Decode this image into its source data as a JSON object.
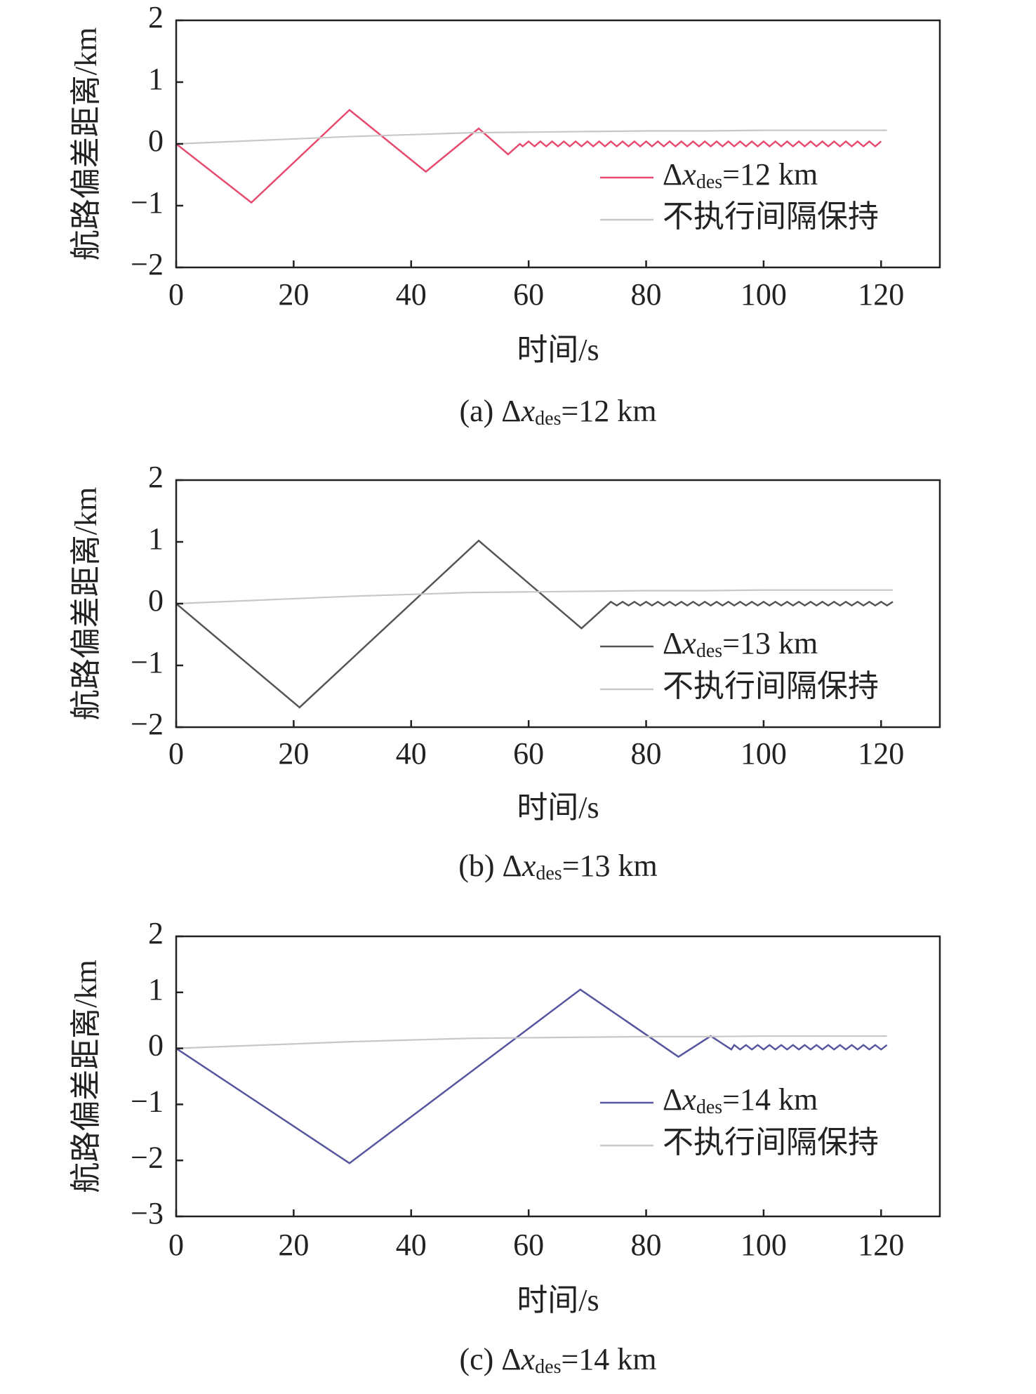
{
  "chart_data": [
    {
      "type": "line",
      "x_label": "时间/s",
      "y_label": "航路偏差距离/km",
      "caption": [
        {
          "text": "(a) Δ"
        },
        {
          "text": "x",
          "style": "italic"
        },
        {
          "text": "des",
          "style": "sub"
        },
        {
          "text": "=12 km"
        }
      ],
      "xlim": [
        0,
        130
      ],
      "xticks": [
        0,
        20,
        40,
        60,
        80,
        100,
        120
      ],
      "ylim": [
        -2,
        2
      ],
      "yticks": [
        {
          "value": -2,
          "label": "−2"
        },
        {
          "value": -1,
          "label": "−1"
        },
        0,
        1,
        2
      ],
      "grid": false,
      "legend": "lower right",
      "series": [
        {
          "name": [
            {
              "text": "Δ"
            },
            {
              "text": "x",
              "style": "italic"
            },
            {
              "text": "des",
              "style": "sub"
            },
            {
              "text": "=12 km"
            }
          ],
          "color": "#e64a6e",
          "x": [
            0,
            12.8,
            29.5,
            42.5,
            51.5,
            56.5,
            58.5,
            59,
            60,
            61,
            62,
            63,
            64,
            65,
            66,
            67,
            68,
            69,
            70,
            71,
            72,
            73,
            74,
            75,
            76,
            77,
            78,
            79,
            80,
            81,
            82,
            83,
            84,
            85,
            86,
            87,
            88,
            89,
            90,
            91,
            92,
            93,
            94,
            95,
            96,
            97,
            98,
            99,
            100,
            101,
            102,
            103,
            104,
            105,
            106,
            107,
            108,
            109,
            110,
            111,
            112,
            113,
            114,
            115,
            116,
            117,
            118,
            119,
            120
          ],
          "values": [
            0,
            -0.95,
            0.55,
            -0.45,
            0.25,
            -0.17,
            0,
            -0.04,
            0.04,
            -0.04,
            0.04,
            -0.04,
            0.04,
            -0.04,
            0.04,
            -0.04,
            0.04,
            -0.04,
            0.04,
            -0.04,
            0.04,
            -0.04,
            0.04,
            -0.04,
            0.04,
            -0.04,
            0.04,
            -0.04,
            0.04,
            -0.04,
            0.04,
            -0.04,
            0.04,
            -0.04,
            0.04,
            -0.04,
            0.04,
            -0.04,
            0.04,
            -0.04,
            0.04,
            -0.04,
            0.04,
            -0.04,
            0.04,
            -0.04,
            0.04,
            -0.04,
            0.04,
            -0.04,
            0.04,
            -0.04,
            0.04,
            -0.04,
            0.04,
            -0.04,
            0.04,
            -0.04,
            0.04,
            -0.04,
            0.04,
            -0.04,
            0.04,
            -0.04,
            0.04,
            -0.04,
            0.04,
            -0.04,
            0.04
          ]
        },
        {
          "name": [
            {
              "text": "不执行间隔保持"
            }
          ],
          "color": "#c8c8c8",
          "x": [
            0,
            10,
            20,
            30,
            40,
            50,
            60,
            70,
            80,
            90,
            100,
            110,
            121
          ],
          "values": [
            0,
            0.04,
            0.08,
            0.12,
            0.15,
            0.18,
            0.19,
            0.2,
            0.21,
            0.21,
            0.22,
            0.22,
            0.22
          ]
        }
      ]
    },
    {
      "type": "line",
      "x_label": "时间/s",
      "y_label": "航路偏差距离/km",
      "caption": [
        {
          "text": "(b) Δ"
        },
        {
          "text": "x",
          "style": "italic"
        },
        {
          "text": "des",
          "style": "sub"
        },
        {
          "text": "=13 km"
        }
      ],
      "xlim": [
        0,
        130
      ],
      "xticks": [
        0,
        20,
        40,
        60,
        80,
        100,
        120
      ],
      "ylim": [
        -2,
        2
      ],
      "yticks": [
        {
          "value": -2,
          "label": "−2"
        },
        {
          "value": -1,
          "label": "−1"
        },
        0,
        1,
        2
      ],
      "grid": false,
      "legend": "lower right",
      "series": [
        {
          "name": [
            {
              "text": "Δ"
            },
            {
              "text": "x",
              "style": "italic"
            },
            {
              "text": "des",
              "style": "sub"
            },
            {
              "text": "=13 km"
            }
          ],
          "color": "#555555",
          "x": [
            0,
            21,
            51.5,
            69,
            74,
            75,
            76,
            77,
            78,
            79,
            80,
            81,
            82,
            83,
            84,
            85,
            86,
            87,
            88,
            89,
            90,
            91,
            92,
            93,
            94,
            95,
            96,
            97,
            98,
            99,
            100,
            101,
            102,
            103,
            104,
            105,
            106,
            107,
            108,
            109,
            110,
            111,
            112,
            113,
            114,
            115,
            116,
            117,
            118,
            119,
            120,
            121,
            122
          ],
          "values": [
            0,
            -1.68,
            1.02,
            -0.4,
            0.03,
            -0.03,
            0.03,
            -0.03,
            0.03,
            -0.03,
            0.03,
            -0.03,
            0.03,
            -0.03,
            0.03,
            -0.03,
            0.03,
            -0.03,
            0.03,
            -0.03,
            0.03,
            -0.03,
            0.03,
            -0.03,
            0.03,
            -0.03,
            0.03,
            -0.03,
            0.03,
            -0.03,
            0.03,
            -0.03,
            0.03,
            -0.03,
            0.03,
            -0.03,
            0.03,
            -0.03,
            0.03,
            -0.03,
            0.03,
            -0.03,
            0.03,
            -0.03,
            0.03,
            -0.03,
            0.03,
            -0.03,
            0.03,
            -0.03,
            0.03,
            -0.03,
            0.03
          ]
        },
        {
          "name": [
            {
              "text": "不执行间隔保持"
            }
          ],
          "color": "#c8c8c8",
          "x": [
            0,
            10,
            20,
            30,
            40,
            50,
            60,
            70,
            80,
            90,
            100,
            110,
            122
          ],
          "values": [
            0,
            0.04,
            0.08,
            0.12,
            0.15,
            0.18,
            0.19,
            0.2,
            0.21,
            0.21,
            0.22,
            0.22,
            0.22
          ]
        }
      ]
    },
    {
      "type": "line",
      "x_label": "时间/s",
      "y_label": "航路偏差距离/km",
      "caption": [
        {
          "text": "(c) Δ"
        },
        {
          "text": "x",
          "style": "italic"
        },
        {
          "text": "des",
          "style": "sub"
        },
        {
          "text": "=14 km"
        }
      ],
      "xlim": [
        0,
        130
      ],
      "xticks": [
        0,
        20,
        40,
        60,
        80,
        100,
        120
      ],
      "ylim": [
        -3,
        2
      ],
      "yticks": [
        {
          "value": -3,
          "label": "−3"
        },
        {
          "value": -2,
          "label": "−2"
        },
        {
          "value": -1,
          "label": "−1"
        },
        0,
        1,
        2
      ],
      "grid": false,
      "legend": "lower right",
      "series": [
        {
          "name": [
            {
              "text": "Δ"
            },
            {
              "text": "x",
              "style": "italic"
            },
            {
              "text": "des",
              "style": "sub"
            },
            {
              "text": "=14 km"
            }
          ],
          "color": "#56569e",
          "x": [
            0,
            29.5,
            68.8,
            85.5,
            91,
            94.5,
            95,
            96,
            97,
            98,
            99,
            100,
            101,
            102,
            103,
            104,
            105,
            106,
            107,
            108,
            109,
            110,
            111,
            112,
            113,
            114,
            115,
            116,
            117,
            118,
            119,
            120,
            121
          ],
          "values": [
            0,
            -2.05,
            1.05,
            -0.15,
            0.22,
            -0.02,
            0.06,
            -0.02,
            0.06,
            -0.02,
            0.06,
            -0.02,
            0.06,
            -0.02,
            0.06,
            -0.02,
            0.06,
            -0.02,
            0.06,
            -0.02,
            0.06,
            -0.02,
            0.06,
            -0.02,
            0.06,
            -0.02,
            0.06,
            -0.02,
            0.06,
            -0.02,
            0.06,
            -0.02,
            0.06
          ]
        },
        {
          "name": [
            {
              "text": "不执行间隔保持"
            }
          ],
          "color": "#c8c8c8",
          "x": [
            0,
            10,
            20,
            30,
            40,
            50,
            60,
            70,
            80,
            90,
            100,
            110,
            121
          ],
          "values": [
            0,
            0.04,
            0.08,
            0.12,
            0.15,
            0.18,
            0.19,
            0.2,
            0.21,
            0.21,
            0.22,
            0.22,
            0.22
          ]
        }
      ]
    }
  ]
}
